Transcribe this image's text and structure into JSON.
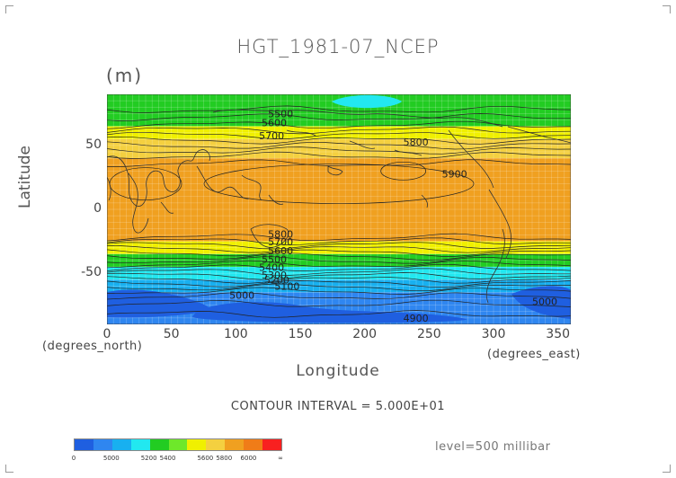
{
  "title": "HGT_1981-07_NCEP",
  "units": "(m)",
  "xaxis": {
    "label": "Longitude",
    "ticks": [
      "0",
      "50",
      "100",
      "150",
      "200",
      "250",
      "300",
      "350"
    ],
    "left_unit": "(degrees_north)",
    "right_unit": "(degrees_east)"
  },
  "yaxis": {
    "label": "Latitude",
    "ticks": [
      "50",
      "0",
      "-50"
    ]
  },
  "contour_interval": "CONTOUR INTERVAL = 5.000E+01",
  "level": "level=500 millibar",
  "colorbar": {
    "labels": [
      "0",
      "5000",
      "5200",
      "5400",
      "5600",
      "5800",
      "6000",
      "∞"
    ],
    "colors": [
      "#1f5fe0",
      "#2f86f0",
      "#18b0f0",
      "#22e8f0",
      "#22cc22",
      "#6ee82a",
      "#f0f000",
      "#f4d040",
      "#f0a020",
      "#f07c18",
      "#f82020"
    ]
  },
  "chart_data": {
    "type": "contour-map",
    "variable": "HGT",
    "xlim": [
      0,
      360
    ],
    "ylim": [
      -90,
      90
    ],
    "bands": [
      {
        "lat": [
          90,
          65
        ],
        "color": "#22cc22"
      },
      {
        "lat": [
          65,
          55
        ],
        "color": "#f0f000"
      },
      {
        "lat": [
          55,
          40
        ],
        "color": "#f4d040"
      },
      {
        "lat": [
          40,
          -25
        ],
        "color": "#f0a020"
      },
      {
        "lat": [
          -25,
          -35
        ],
        "color": "#f0f000"
      },
      {
        "lat": [
          -35,
          -45
        ],
        "color": "#22cc22"
      },
      {
        "lat": [
          -45,
          -55
        ],
        "color": "#22e8f0"
      },
      {
        "lat": [
          -55,
          -65
        ],
        "color": "#18b0f0"
      },
      {
        "lat": [
          -65,
          -90
        ],
        "color": "#2f86f0"
      }
    ],
    "contour_labels": [
      {
        "text": "5500",
        "lon": 125,
        "lat": 72
      },
      {
        "text": "5600",
        "lon": 120,
        "lat": 65
      },
      {
        "text": "5700",
        "lon": 118,
        "lat": 55
      },
      {
        "text": "5800",
        "lon": 230,
        "lat": 50
      },
      {
        "text": "5900",
        "lon": 260,
        "lat": 25
      },
      {
        "text": "5800",
        "lon": 125,
        "lat": -22
      },
      {
        "text": "5700",
        "lon": 125,
        "lat": -28
      },
      {
        "text": "5600",
        "lon": 125,
        "lat": -35
      },
      {
        "text": "5500",
        "lon": 120,
        "lat": -42
      },
      {
        "text": "5400",
        "lon": 118,
        "lat": -48
      },
      {
        "text": "5300",
        "lon": 120,
        "lat": -54
      },
      {
        "text": "5200",
        "lon": 122,
        "lat": -58
      },
      {
        "text": "5100",
        "lon": 130,
        "lat": -63
      },
      {
        "text": "5000",
        "lon": 95,
        "lat": -70
      },
      {
        "text": "4900",
        "lon": 230,
        "lat": -88
      },
      {
        "text": "5000",
        "lon": 330,
        "lat": -75
      }
    ]
  }
}
